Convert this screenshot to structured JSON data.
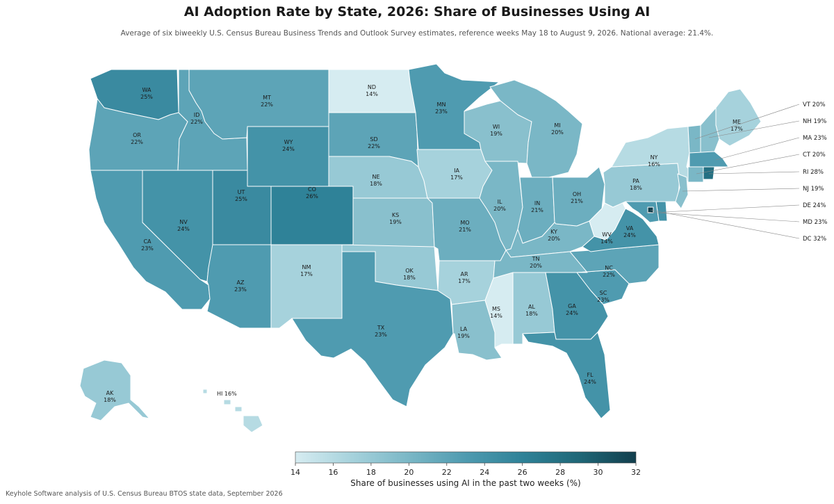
{
  "title": "AI Adoption Rate by State, 2026: Share of Businesses Using AI",
  "subtitle": "Average of six biweekly U.S. Census Bureau Business Trends and Outlook Survey estimates, reference weeks May 18 to August 9, 2026. National average: 21.4%.",
  "colorbar": {
    "min": 14,
    "max": 32,
    "ticks": [
      "14",
      "16",
      "18",
      "20",
      "22",
      "24",
      "26",
      "28",
      "30",
      "32"
    ],
    "label": "Share of businesses using AI in the past two weeks (%)",
    "colors": [
      "#d6ecf1",
      "#a6d2dc",
      "#7ab7c6",
      "#4f9bb0",
      "#2f8298",
      "#1f6777",
      "#123f4d"
    ]
  },
  "source": "Keyhole Software analysis of U.S. Census Bureau BTOS state data, September 2026",
  "states": [
    {
      "abbr": "WA",
      "value": 25,
      "label": "25%"
    },
    {
      "abbr": "OR",
      "value": 22,
      "label": "22%"
    },
    {
      "abbr": "CA",
      "value": 23,
      "label": "23%"
    },
    {
      "abbr": "ID",
      "value": 22,
      "label": "22%"
    },
    {
      "abbr": "NV",
      "value": 24,
      "label": "24%"
    },
    {
      "abbr": "MT",
      "value": 22,
      "label": "22%"
    },
    {
      "abbr": "WY",
      "value": 24,
      "label": "24%"
    },
    {
      "abbr": "UT",
      "value": 25,
      "label": "25%"
    },
    {
      "abbr": "AZ",
      "value": 23,
      "label": "23%"
    },
    {
      "abbr": "CO",
      "value": 26,
      "label": "26%"
    },
    {
      "abbr": "NM",
      "value": 17,
      "label": "17%"
    },
    {
      "abbr": "ND",
      "value": 14,
      "label": "14%"
    },
    {
      "abbr": "SD",
      "value": 22,
      "label": "22%"
    },
    {
      "abbr": "NE",
      "value": 18,
      "label": "18%"
    },
    {
      "abbr": "KS",
      "value": 19,
      "label": "19%"
    },
    {
      "abbr": "OK",
      "value": 18,
      "label": "18%"
    },
    {
      "abbr": "TX",
      "value": 23,
      "label": "23%"
    },
    {
      "abbr": "MN",
      "value": 23,
      "label": "23%"
    },
    {
      "abbr": "IA",
      "value": 17,
      "label": "17%"
    },
    {
      "abbr": "MO",
      "value": 21,
      "label": "21%"
    },
    {
      "abbr": "AR",
      "value": 17,
      "label": "17%"
    },
    {
      "abbr": "LA",
      "value": 19,
      "label": "19%"
    },
    {
      "abbr": "WI",
      "value": 19,
      "label": "19%"
    },
    {
      "abbr": "IL",
      "value": 20,
      "label": "20%"
    },
    {
      "abbr": "MS",
      "value": 14,
      "label": "14%"
    },
    {
      "abbr": "MI",
      "value": 20,
      "label": "20%"
    },
    {
      "abbr": "IN",
      "value": 21,
      "label": "21%"
    },
    {
      "abbr": "KY",
      "value": 20,
      "label": "20%"
    },
    {
      "abbr": "TN",
      "value": 20,
      "label": "20%"
    },
    {
      "abbr": "AL",
      "value": 18,
      "label": "18%"
    },
    {
      "abbr": "OH",
      "value": 21,
      "label": "21%"
    },
    {
      "abbr": "WV",
      "value": 14,
      "label": "14%"
    },
    {
      "abbr": "GA",
      "value": 24,
      "label": "24%"
    },
    {
      "abbr": "FL",
      "value": 24,
      "label": "24%"
    },
    {
      "abbr": "SC",
      "value": 23,
      "label": "23%"
    },
    {
      "abbr": "NC",
      "value": 22,
      "label": "22%"
    },
    {
      "abbr": "VA",
      "value": 24,
      "label": "24%"
    },
    {
      "abbr": "PA",
      "value": 18,
      "label": "18%"
    },
    {
      "abbr": "NY",
      "value": 16,
      "label": "16%"
    },
    {
      "abbr": "ME",
      "value": 17,
      "label": "17%"
    },
    {
      "abbr": "AK",
      "value": 18,
      "label": "18%"
    },
    {
      "abbr": "HI",
      "value": 16,
      "label": "HI 16%"
    }
  ],
  "callouts": [
    {
      "abbr": "VT",
      "value": 20,
      "label": "VT 20%"
    },
    {
      "abbr": "NH",
      "value": 19,
      "label": "NH 19%"
    },
    {
      "abbr": "MA",
      "value": 23,
      "label": "MA 23%"
    },
    {
      "abbr": "CT",
      "value": 20,
      "label": "CT 20%"
    },
    {
      "abbr": "RI",
      "value": 28,
      "label": "RI 28%"
    },
    {
      "abbr": "NJ",
      "value": 19,
      "label": "NJ 19%"
    },
    {
      "abbr": "DE",
      "value": 24,
      "label": "DE 24%"
    },
    {
      "abbr": "MD",
      "value": 23,
      "label": "MD 23%"
    },
    {
      "abbr": "DC",
      "value": 32,
      "label": "DC 32%"
    }
  ]
}
